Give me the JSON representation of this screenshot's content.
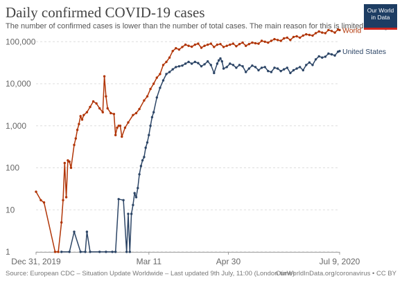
{
  "header": {
    "title": "Daily confirmed COVID-19 cases",
    "subtitle": "The number of confirmed cases is lower than the number of total cases. The main reason for this is limited testing."
  },
  "logo": {
    "line1": "Our World",
    "line2": "in Data"
  },
  "footer": {
    "source": "Source: European CDC – Situation Update Worldwide – Last updated 9th July, 11:00 (London time)",
    "credit": "OurWorldInData.org/coronavirus • CC BY"
  },
  "chart_data": {
    "type": "line",
    "x_axis": {
      "type": "date",
      "range": [
        "2019-12-31",
        "2020-07-09"
      ],
      "tick_labels": [
        "Dec 31, 2019",
        "Mar 11",
        "Apr 30",
        "Jul 9, 2020"
      ],
      "tick_dates": [
        "2019-12-31",
        "2020-03-11",
        "2020-04-30",
        "2020-07-09"
      ]
    },
    "y_axis": {
      "scale": "log",
      "range": [
        1,
        200000
      ],
      "tick_labels": [
        "1",
        "10",
        "100",
        "1,000",
        "10,000",
        "100,000"
      ],
      "tick_values": [
        1,
        10,
        100,
        1000,
        10000,
        100000
      ]
    },
    "grid": "horizontal dashed",
    "series": [
      {
        "name": "World",
        "color": "#b13507",
        "points": [
          [
            "2019-12-31",
            27
          ],
          [
            "2020-01-03",
            17
          ],
          [
            "2020-01-05",
            15
          ],
          [
            "2020-01-12",
            1
          ],
          [
            "2020-01-14",
            1
          ],
          [
            "2020-01-16",
            5
          ],
          [
            "2020-01-17",
            17
          ],
          [
            "2020-01-18",
            130
          ],
          [
            "2020-01-19",
            20
          ],
          [
            "2020-01-20",
            150
          ],
          [
            "2020-01-21",
            140
          ],
          [
            "2020-01-22",
            100
          ],
          [
            "2020-01-24",
            350
          ],
          [
            "2020-01-25",
            500
          ],
          [
            "2020-01-26",
            800
          ],
          [
            "2020-01-27",
            1100
          ],
          [
            "2020-01-28",
            1700
          ],
          [
            "2020-01-29",
            1400
          ],
          [
            "2020-01-30",
            1800
          ],
          [
            "2020-02-01",
            2100
          ],
          [
            "2020-02-03",
            2800
          ],
          [
            "2020-02-05",
            3800
          ],
          [
            "2020-02-07",
            3400
          ],
          [
            "2020-02-09",
            2600
          ],
          [
            "2020-02-11",
            2100
          ],
          [
            "2020-02-12",
            15000
          ],
          [
            "2020-02-13",
            5000
          ],
          [
            "2020-02-14",
            2600
          ],
          [
            "2020-02-16",
            2000
          ],
          [
            "2020-02-18",
            1900
          ],
          [
            "2020-02-19",
            600
          ],
          [
            "2020-02-20",
            900
          ],
          [
            "2020-02-21",
            1000
          ],
          [
            "2020-02-22",
            1000
          ],
          [
            "2020-02-23",
            550
          ],
          [
            "2020-02-25",
            900
          ],
          [
            "2020-02-27",
            1200
          ],
          [
            "2020-03-01",
            1800
          ],
          [
            "2020-03-03",
            2000
          ],
          [
            "2020-03-05",
            2500
          ],
          [
            "2020-03-08",
            4000
          ],
          [
            "2020-03-10",
            5000
          ],
          [
            "2020-03-12",
            7500
          ],
          [
            "2020-03-14",
            10000
          ],
          [
            "2020-03-16",
            14000
          ],
          [
            "2020-03-18",
            17000
          ],
          [
            "2020-03-20",
            28000
          ],
          [
            "2020-03-22",
            33000
          ],
          [
            "2020-03-24",
            42000
          ],
          [
            "2020-03-26",
            60000
          ],
          [
            "2020-03-28",
            70000
          ],
          [
            "2020-03-30",
            65000
          ],
          [
            "2020-04-01",
            75000
          ],
          [
            "2020-04-03",
            85000
          ],
          [
            "2020-04-05",
            80000
          ],
          [
            "2020-04-07",
            76000
          ],
          [
            "2020-04-09",
            85000
          ],
          [
            "2020-04-11",
            90000
          ],
          [
            "2020-04-13",
            72000
          ],
          [
            "2020-04-15",
            80000
          ],
          [
            "2020-04-17",
            85000
          ],
          [
            "2020-04-19",
            90000
          ],
          [
            "2020-04-21",
            75000
          ],
          [
            "2020-04-23",
            85000
          ],
          [
            "2020-04-25",
            88000
          ],
          [
            "2020-04-27",
            75000
          ],
          [
            "2020-04-29",
            80000
          ],
          [
            "2020-05-01",
            85000
          ],
          [
            "2020-05-03",
            90000
          ],
          [
            "2020-05-05",
            78000
          ],
          [
            "2020-05-07",
            88000
          ],
          [
            "2020-05-09",
            95000
          ],
          [
            "2020-05-11",
            80000
          ],
          [
            "2020-05-13",
            88000
          ],
          [
            "2020-05-15",
            95000
          ],
          [
            "2020-05-17",
            92000
          ],
          [
            "2020-05-19",
            90000
          ],
          [
            "2020-05-21",
            105000
          ],
          [
            "2020-05-23",
            100000
          ],
          [
            "2020-05-25",
            95000
          ],
          [
            "2020-05-27",
            105000
          ],
          [
            "2020-05-29",
            115000
          ],
          [
            "2020-05-31",
            110000
          ],
          [
            "2020-06-02",
            105000
          ],
          [
            "2020-06-04",
            120000
          ],
          [
            "2020-06-06",
            125000
          ],
          [
            "2020-06-08",
            110000
          ],
          [
            "2020-06-10",
            130000
          ],
          [
            "2020-06-12",
            135000
          ],
          [
            "2020-06-14",
            125000
          ],
          [
            "2020-06-16",
            140000
          ],
          [
            "2020-06-18",
            150000
          ],
          [
            "2020-06-20",
            145000
          ],
          [
            "2020-06-22",
            140000
          ],
          [
            "2020-06-24",
            160000
          ],
          [
            "2020-06-26",
            175000
          ],
          [
            "2020-06-28",
            165000
          ],
          [
            "2020-06-30",
            160000
          ],
          [
            "2020-07-02",
            190000
          ],
          [
            "2020-07-04",
            180000
          ],
          [
            "2020-07-06",
            165000
          ],
          [
            "2020-07-08",
            195000
          ],
          [
            "2020-07-09",
            190000
          ]
        ]
      },
      {
        "name": "United States",
        "color": "#2c4566",
        "points": [
          [
            "2020-01-16",
            1
          ],
          [
            "2020-01-21",
            1
          ],
          [
            "2020-01-24",
            3
          ],
          [
            "2020-01-28",
            1
          ],
          [
            "2020-01-31",
            1
          ],
          [
            "2020-02-01",
            3
          ],
          [
            "2020-02-03",
            1
          ],
          [
            "2020-02-09",
            1
          ],
          [
            "2020-02-13",
            1
          ],
          [
            "2020-02-17",
            1
          ],
          [
            "2020-02-19",
            1
          ],
          [
            "2020-02-21",
            18
          ],
          [
            "2020-02-24",
            17
          ],
          [
            "2020-02-26",
            1
          ],
          [
            "2020-02-27",
            8
          ],
          [
            "2020-02-28",
            1
          ],
          [
            "2020-02-29",
            8
          ],
          [
            "2020-03-01",
            13
          ],
          [
            "2020-03-02",
            25
          ],
          [
            "2020-03-03",
            20
          ],
          [
            "2020-03-04",
            33
          ],
          [
            "2020-03-05",
            70
          ],
          [
            "2020-03-06",
            110
          ],
          [
            "2020-03-07",
            150
          ],
          [
            "2020-03-08",
            180
          ],
          [
            "2020-03-09",
            300
          ],
          [
            "2020-03-10",
            400
          ],
          [
            "2020-03-11",
            600
          ],
          [
            "2020-03-12",
            1000
          ],
          [
            "2020-03-13",
            1600
          ],
          [
            "2020-03-14",
            2100
          ],
          [
            "2020-03-16",
            4700
          ],
          [
            "2020-03-18",
            8000
          ],
          [
            "2020-03-20",
            12000
          ],
          [
            "2020-03-22",
            17000
          ],
          [
            "2020-03-24",
            19000
          ],
          [
            "2020-03-26",
            22000
          ],
          [
            "2020-03-28",
            25000
          ],
          [
            "2020-03-30",
            26000
          ],
          [
            "2020-04-01",
            27000
          ],
          [
            "2020-04-03",
            30000
          ],
          [
            "2020-04-05",
            33000
          ],
          [
            "2020-04-07",
            30000
          ],
          [
            "2020-04-09",
            33000
          ],
          [
            "2020-04-11",
            31000
          ],
          [
            "2020-04-13",
            26000
          ],
          [
            "2020-04-15",
            29000
          ],
          [
            "2020-04-17",
            34000
          ],
          [
            "2020-04-19",
            28000
          ],
          [
            "2020-04-21",
            18000
          ],
          [
            "2020-04-23",
            30000
          ],
          [
            "2020-04-24",
            36000
          ],
          [
            "2020-04-25",
            40000
          ],
          [
            "2020-04-26",
            34000
          ],
          [
            "2020-04-27",
            23000
          ],
          [
            "2020-04-29",
            25000
          ],
          [
            "2020-05-01",
            30000
          ],
          [
            "2020-05-03",
            28000
          ],
          [
            "2020-05-05",
            24000
          ],
          [
            "2020-05-07",
            28000
          ],
          [
            "2020-05-09",
            26000
          ],
          [
            "2020-05-11",
            19000
          ],
          [
            "2020-05-13",
            23000
          ],
          [
            "2020-05-15",
            27000
          ],
          [
            "2020-05-17",
            25000
          ],
          [
            "2020-05-19",
            21000
          ],
          [
            "2020-05-21",
            24000
          ],
          [
            "2020-05-23",
            25000
          ],
          [
            "2020-05-25",
            20000
          ],
          [
            "2020-05-27",
            19000
          ],
          [
            "2020-05-29",
            24000
          ],
          [
            "2020-05-31",
            23000
          ],
          [
            "2020-06-02",
            20000
          ],
          [
            "2020-06-04",
            22000
          ],
          [
            "2020-06-06",
            24000
          ],
          [
            "2020-06-08",
            18000
          ],
          [
            "2020-06-10",
            21000
          ],
          [
            "2020-06-12",
            23000
          ],
          [
            "2020-06-14",
            25000
          ],
          [
            "2020-06-16",
            21000
          ],
          [
            "2020-06-18",
            28000
          ],
          [
            "2020-06-20",
            32000
          ],
          [
            "2020-06-22",
            28000
          ],
          [
            "2020-06-24",
            38000
          ],
          [
            "2020-06-26",
            45000
          ],
          [
            "2020-06-28",
            42000
          ],
          [
            "2020-06-30",
            44000
          ],
          [
            "2020-07-02",
            52000
          ],
          [
            "2020-07-04",
            50000
          ],
          [
            "2020-07-06",
            47000
          ],
          [
            "2020-07-08",
            58000
          ],
          [
            "2020-07-09",
            60000
          ]
        ]
      }
    ]
  }
}
